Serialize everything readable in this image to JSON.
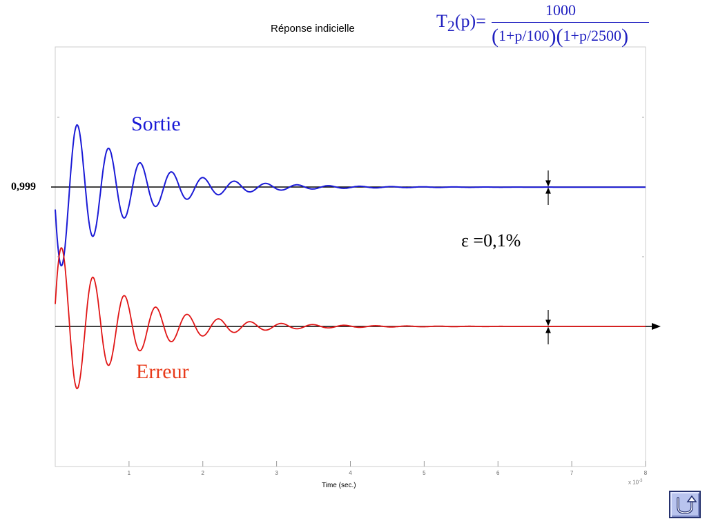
{
  "chart_data": {
    "type": "line",
    "title": "Réponse indicielle",
    "xlabel": "Time (sec.)",
    "x_scale_label": "x 10",
    "x_scale_exponent": "-3",
    "xlim": [
      0,
      8
    ],
    "xticks": [
      "1",
      "2",
      "3",
      "4",
      "5",
      "6",
      "7",
      "8"
    ],
    "ylim": [
      -0.4,
      1.1
    ],
    "grid": false,
    "series": [
      {
        "name": "Sortie",
        "color": "#1a1ad6",
        "final_value": 0.999,
        "amplitude": 0.62,
        "decay": 1.1,
        "freq": 2.35,
        "phase_deg": -165
      },
      {
        "name": "Erreur",
        "color": "#e01515",
        "final_value": 0.0,
        "amplitude": 0.62,
        "decay": 1.1,
        "freq": 2.35,
        "phase_deg": 15
      }
    ],
    "reference_lines": [
      {
        "label": "0,999",
        "value": 0.999
      },
      {
        "label": "",
        "value": 0.0
      }
    ],
    "tolerance_marker": {
      "label": "ε =0,1%",
      "x": 6.67
    }
  },
  "formula": {
    "lhs": "T",
    "subscript": "2",
    "arg": "(p)=",
    "numerator": "1000",
    "den_open1": "(",
    "den_term1": "1+p/100",
    "den_close1": ")",
    "den_open2": "(",
    "den_term2": "1+p/2500",
    "den_close2": ")"
  },
  "colors": {
    "output": "#1a1ad6",
    "error": "#e01515",
    "formula": "#2020c0",
    "reference": "#000000"
  },
  "nav": {
    "icon": "return-u-arrow-icon"
  }
}
